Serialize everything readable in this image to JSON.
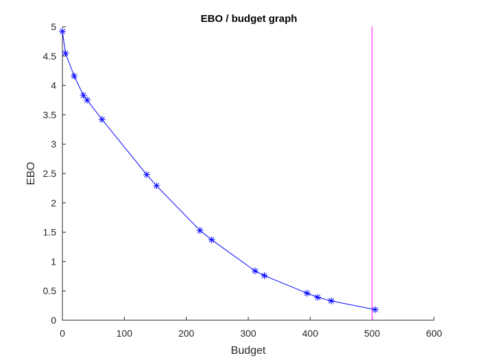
{
  "chart_data": {
    "type": "line",
    "title": "EBO / budget graph",
    "xlabel": "Budget",
    "ylabel": "EBO",
    "xlim": [
      0,
      600
    ],
    "ylim": [
      0,
      5
    ],
    "xticks": [
      0,
      100,
      200,
      300,
      400,
      500,
      600
    ],
    "yticks": [
      0,
      0.5,
      1,
      1.5,
      2,
      2.5,
      3,
      3.5,
      4,
      4.5,
      5
    ],
    "xtick_labels": [
      "0",
      "100",
      "200",
      "300",
      "400",
      "500",
      "600"
    ],
    "ytick_labels": [
      "0",
      "0.5",
      "1",
      "1.5",
      "2",
      "2.5",
      "3",
      "3.5",
      "4",
      "4.5",
      "5"
    ],
    "grid": false,
    "series": [
      {
        "color": "#0000ff",
        "marker": "asterisk",
        "x": [
          0,
          5,
          19,
          34,
          40,
          64,
          136,
          152,
          222,
          241,
          311,
          326,
          395,
          412,
          434,
          505
        ],
        "y": [
          4.92,
          4.55,
          4.16,
          3.83,
          3.75,
          3.42,
          2.48,
          2.29,
          1.53,
          1.37,
          0.84,
          0.76,
          0.46,
          0.39,
          0.33,
          0.18
        ]
      }
    ],
    "vertical_line": {
      "x": 500,
      "color": "#ff00ff"
    }
  }
}
